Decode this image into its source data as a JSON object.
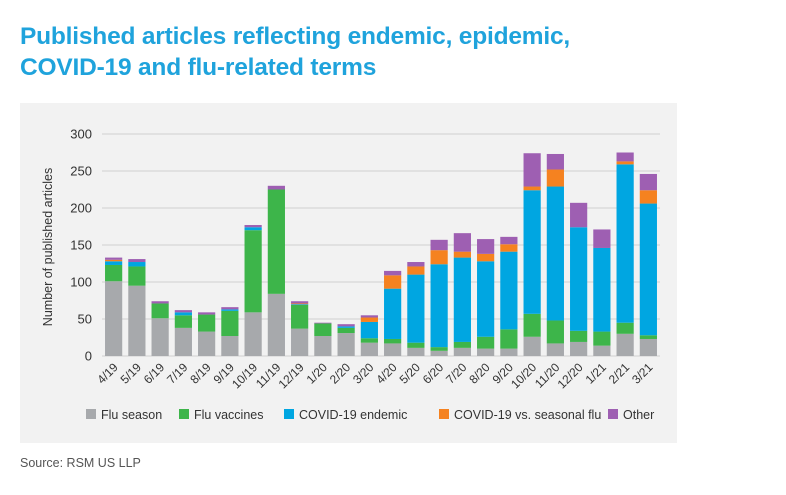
{
  "header": {
    "title_line1": "Published articles reflecting endemic, epidemic,",
    "title_line2": "COVID-19 and flu-related terms"
  },
  "footer": {
    "source": "Source: RSM US LLP"
  },
  "colors": {
    "Flu season": "#a7a9ac",
    "Flu vaccines": "#3db54a",
    "COVID-19 endemic": "#00a6e1",
    "COVID-19 vs. seasonal flu": "#f58220",
    "Other": "#9e5fb2",
    "grid": "#d0d0d0",
    "title": "#1fa3dc"
  },
  "chart_data": {
    "type": "bar",
    "stacked": true,
    "title": "",
    "xlabel": "",
    "ylabel": "Number of published articles",
    "ylim": [
      0,
      300
    ],
    "yticks": [
      0,
      50,
      100,
      150,
      200,
      250,
      300
    ],
    "grid": true,
    "legend_position": "bottom",
    "categories": [
      "4/19",
      "5/19",
      "6/19",
      "7/19",
      "8/19",
      "9/19",
      "10/19",
      "11/19",
      "12/19",
      "1/20",
      "2/20",
      "3/20",
      "4/20",
      "5/20",
      "6/20",
      "7/20",
      "8/20",
      "9/20",
      "10/20",
      "11/20",
      "12/20",
      "1/21",
      "2/21",
      "3/21"
    ],
    "series": [
      {
        "name": "Flu season",
        "values": [
          101,
          95,
          51,
          38,
          33,
          27,
          59,
          84,
          37,
          27,
          31,
          18,
          17,
          11,
          7,
          11,
          10,
          10,
          26,
          17,
          19,
          14,
          30,
          23
        ]
      },
      {
        "name": "Flu vaccines",
        "values": [
          22,
          26,
          20,
          17,
          23,
          34,
          111,
          141,
          32,
          17,
          7,
          6,
          6,
          7,
          5,
          8,
          16,
          26,
          31,
          31,
          15,
          19,
          15,
          5
        ]
      },
      {
        "name": "COVID-19 endemic",
        "values": [
          5,
          6,
          0,
          4,
          0,
          2,
          4,
          0,
          1,
          0,
          2,
          22,
          68,
          92,
          112,
          114,
          102,
          105,
          167,
          181,
          140,
          113,
          214,
          178
        ]
      },
      {
        "name": "COVID-19 vs. seasonal flu",
        "values": [
          2,
          0,
          0,
          0,
          0,
          0,
          0,
          0,
          1,
          0,
          0,
          6,
          18,
          11,
          19,
          8,
          10,
          10,
          5,
          23,
          0,
          0,
          4,
          18
        ]
      },
      {
        "name": "Other",
        "values": [
          3,
          4,
          3,
          3,
          3,
          3,
          3,
          5,
          3,
          1,
          3,
          3,
          6,
          6,
          14,
          25,
          20,
          10,
          45,
          21,
          33,
          25,
          12,
          22
        ]
      }
    ]
  }
}
